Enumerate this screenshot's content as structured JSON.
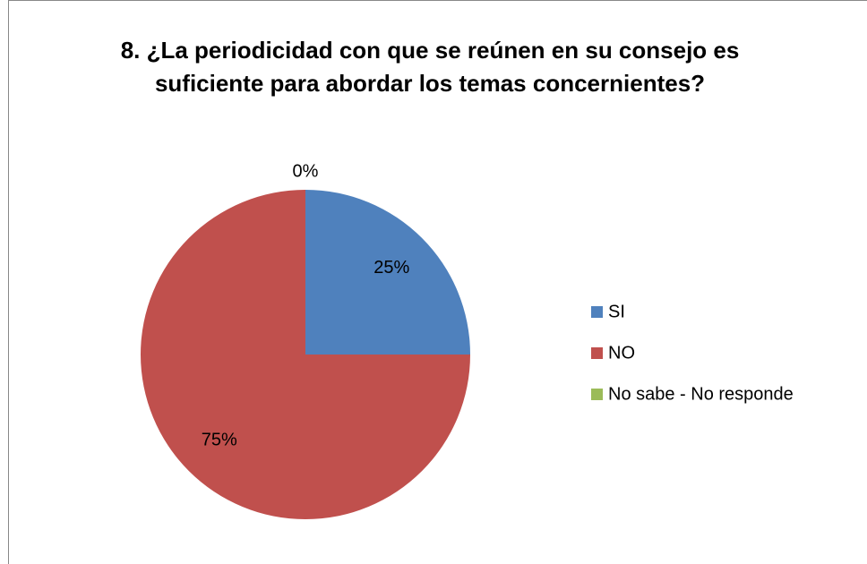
{
  "chart_data": {
    "type": "pie",
    "title": "8. ¿La periodicidad con que se reúnen en su consejo es suficiente para abordar los temas concernientes?",
    "categories": [
      "SI",
      "NO",
      "No sabe - No responde"
    ],
    "values": [
      25,
      75,
      0
    ],
    "value_labels": [
      "25%",
      "75%",
      "0%"
    ],
    "colors": [
      "#4f81bd",
      "#c0504d",
      "#9bbb59"
    ],
    "legend": "right"
  }
}
